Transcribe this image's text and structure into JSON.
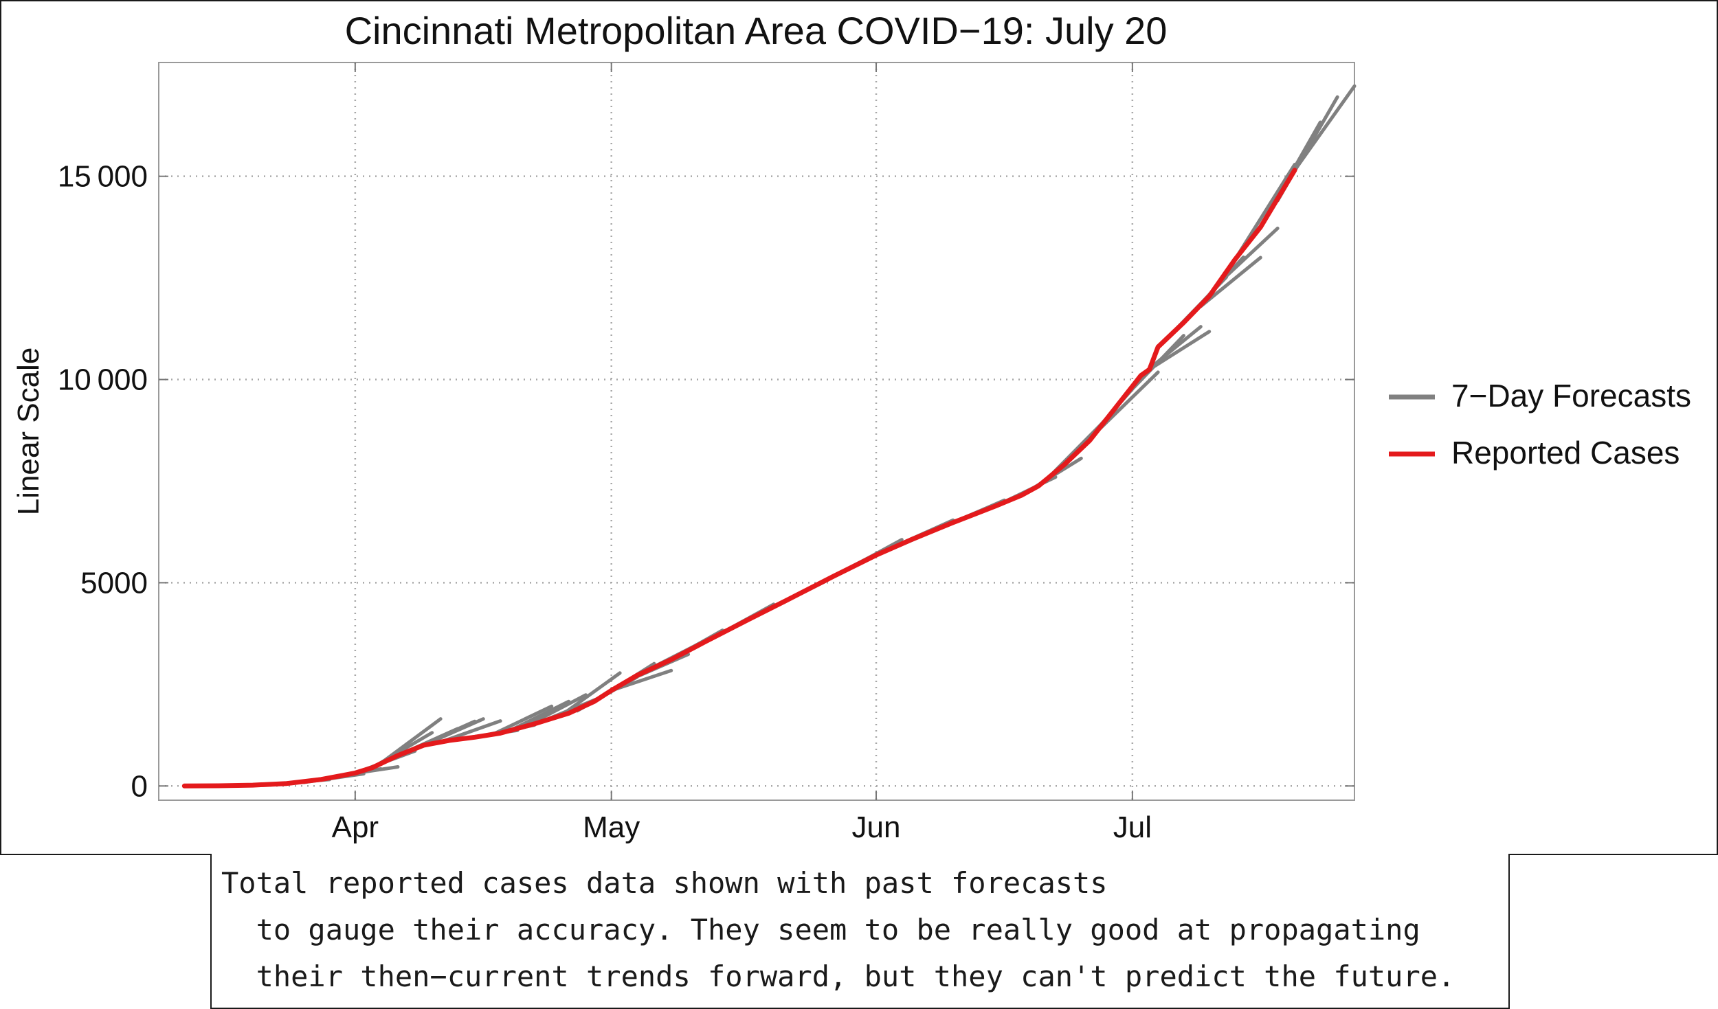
{
  "chart_data": {
    "type": "line",
    "title": "Cincinnati Metropolitan Area COVID−19: July 20",
    "xlabel": "",
    "ylabel": "Linear Scale",
    "grid": true,
    "x_domain": [
      "2020-03-09",
      "2020-07-27"
    ],
    "y_domain": [
      -350,
      17800
    ],
    "x_ticks": [
      {
        "date": "2020-04-01",
        "label": "Apr"
      },
      {
        "date": "2020-05-01",
        "label": "May"
      },
      {
        "date": "2020-06-01",
        "label": "Jun"
      },
      {
        "date": "2020-07-01",
        "label": "Jul"
      }
    ],
    "y_ticks": [
      {
        "value": 0,
        "label": "0"
      },
      {
        "value": 5000,
        "label": "5000"
      },
      {
        "value": 10000,
        "label": "10 000"
      },
      {
        "value": 15000,
        "label": "15 000"
      }
    ],
    "legend": {
      "placement": "right",
      "entries": [
        {
          "label": "7−Day Forecasts",
          "color": "#808080"
        },
        {
          "label": "Reported Cases",
          "color": "#e41a1c"
        }
      ]
    },
    "series": [
      {
        "name": "Reported Cases",
        "color": "#e41a1c",
        "points": [
          [
            "2020-03-12",
            0
          ],
          [
            "2020-03-16",
            5
          ],
          [
            "2020-03-20",
            20
          ],
          [
            "2020-03-24",
            60
          ],
          [
            "2020-03-28",
            160
          ],
          [
            "2020-04-01",
            320
          ],
          [
            "2020-04-03",
            450
          ],
          [
            "2020-04-06",
            750
          ],
          [
            "2020-04-09",
            1000
          ],
          [
            "2020-04-12",
            1120
          ],
          [
            "2020-04-15",
            1200
          ],
          [
            "2020-04-18",
            1300
          ],
          [
            "2020-04-22",
            1530
          ],
          [
            "2020-04-26",
            1790
          ],
          [
            "2020-04-29",
            2080
          ],
          [
            "2020-05-01",
            2350
          ],
          [
            "2020-05-04",
            2720
          ],
          [
            "2020-05-08",
            3110
          ],
          [
            "2020-05-12",
            3550
          ],
          [
            "2020-05-17",
            4090
          ],
          [
            "2020-05-22",
            4620
          ],
          [
            "2020-05-27",
            5160
          ],
          [
            "2020-06-01",
            5680
          ],
          [
            "2020-06-05",
            6050
          ],
          [
            "2020-06-10",
            6480
          ],
          [
            "2020-06-15",
            6890
          ],
          [
            "2020-06-18",
            7150
          ],
          [
            "2020-06-20",
            7380
          ],
          [
            "2020-06-23",
            7900
          ],
          [
            "2020-06-26",
            8500
          ],
          [
            "2020-06-29",
            9300
          ],
          [
            "2020-07-02",
            10100
          ],
          [
            "2020-07-03",
            10250
          ],
          [
            "2020-07-04",
            10800
          ],
          [
            "2020-07-07",
            11400
          ],
          [
            "2020-07-10",
            12050
          ],
          [
            "2020-07-13",
            12950
          ],
          [
            "2020-07-16",
            13750
          ],
          [
            "2020-07-20",
            15150
          ]
        ]
      },
      {
        "name": "7−Day Forecasts",
        "color": "#808080",
        "segments": [
          [
            [
              "2020-03-22",
              40
            ],
            [
              "2020-03-29",
              160
            ]
          ],
          [
            [
              "2020-03-24",
              60
            ],
            [
              "2020-03-31",
              260
            ]
          ],
          [
            [
              "2020-03-26",
              90
            ],
            [
              "2020-04-02",
              300
            ]
          ],
          [
            [
              "2020-03-28",
              160
            ],
            [
              "2020-04-04",
              420
            ]
          ],
          [
            [
              "2020-03-30",
              250
            ],
            [
              "2020-04-06",
              470
            ]
          ],
          [
            [
              "2020-04-01",
              320
            ],
            [
              "2020-04-08",
              860
            ]
          ],
          [
            [
              "2020-04-03",
              450
            ],
            [
              "2020-04-10",
              1310
            ]
          ],
          [
            [
              "2020-04-04",
              560
            ],
            [
              "2020-04-11",
              1650
            ]
          ],
          [
            [
              "2020-04-06",
              750
            ],
            [
              "2020-04-13",
              1410
            ]
          ],
          [
            [
              "2020-04-08",
              930
            ],
            [
              "2020-04-15",
              1590
            ]
          ],
          [
            [
              "2020-04-09",
              1000
            ],
            [
              "2020-04-16",
              1650
            ]
          ],
          [
            [
              "2020-04-11",
              1080
            ],
            [
              "2020-04-18",
              1600
            ]
          ],
          [
            [
              "2020-04-13",
              1150
            ],
            [
              "2020-04-20",
              1370
            ]
          ],
          [
            [
              "2020-04-15",
              1200
            ],
            [
              "2020-04-22",
              1500
            ]
          ],
          [
            [
              "2020-04-17",
              1260
            ],
            [
              "2020-04-24",
              1960
            ]
          ],
          [
            [
              "2020-04-19",
              1350
            ],
            [
              "2020-04-26",
              2080
            ]
          ],
          [
            [
              "2020-04-21",
              1470
            ],
            [
              "2020-04-28",
              2240
            ]
          ],
          [
            [
              "2020-04-23",
              1600
            ],
            [
              "2020-04-30",
              2200
            ]
          ],
          [
            [
              "2020-04-25",
              1720
            ],
            [
              "2020-05-02",
              2780
            ]
          ],
          [
            [
              "2020-04-27",
              1850
            ],
            [
              "2020-05-04",
              2680
            ]
          ],
          [
            [
              "2020-04-29",
              2080
            ],
            [
              "2020-05-06",
              3010
            ]
          ],
          [
            [
              "2020-05-01",
              2350
            ],
            [
              "2020-05-08",
              2840
            ]
          ],
          [
            [
              "2020-05-03",
              2600
            ],
            [
              "2020-05-10",
              3240
            ]
          ],
          [
            [
              "2020-05-05",
              2830
            ],
            [
              "2020-05-12",
              3580
            ]
          ],
          [
            [
              "2020-05-07",
              3000
            ],
            [
              "2020-05-14",
              3830
            ]
          ],
          [
            [
              "2020-05-10",
              3330
            ],
            [
              "2020-05-17",
              4090
            ]
          ],
          [
            [
              "2020-05-13",
              3660
            ],
            [
              "2020-05-20",
              4470
            ]
          ],
          [
            [
              "2020-05-16",
              3980
            ],
            [
              "2020-05-23",
              4730
            ]
          ],
          [
            [
              "2020-05-19",
              4300
            ],
            [
              "2020-05-26",
              5030
            ]
          ],
          [
            [
              "2020-05-22",
              4620
            ],
            [
              "2020-05-29",
              5380
            ]
          ],
          [
            [
              "2020-05-25",
              4950
            ],
            [
              "2020-06-01",
              5710
            ]
          ],
          [
            [
              "2020-05-28",
              5260
            ],
            [
              "2020-06-04",
              6060
            ]
          ],
          [
            [
              "2020-05-31",
              5580
            ],
            [
              "2020-06-07",
              6210
            ]
          ],
          [
            [
              "2020-06-03",
              5880
            ],
            [
              "2020-06-10",
              6540
            ]
          ],
          [
            [
              "2020-06-06",
              6140
            ],
            [
              "2020-06-13",
              6750
            ]
          ],
          [
            [
              "2020-06-09",
              6390
            ],
            [
              "2020-06-16",
              7030
            ]
          ],
          [
            [
              "2020-06-12",
              6650
            ],
            [
              "2020-06-19",
              7250
            ]
          ],
          [
            [
              "2020-06-15",
              6890
            ],
            [
              "2020-06-22",
              7600
            ]
          ],
          [
            [
              "2020-06-18",
              7150
            ],
            [
              "2020-06-25",
              8060
            ]
          ],
          [
            [
              "2020-06-21",
              7550
            ],
            [
              "2020-06-28",
              9040
            ]
          ],
          [
            [
              "2020-06-24",
              8100
            ],
            [
              "2020-07-01",
              9770
            ]
          ],
          [
            [
              "2020-06-27",
              8750
            ],
            [
              "2020-07-04",
              10180
            ]
          ],
          [
            [
              "2020-06-30",
              9550
            ],
            [
              "2020-07-07",
              11080
            ]
          ],
          [
            [
              "2020-07-02",
              10100
            ],
            [
              "2020-07-09",
              11300
            ]
          ],
          [
            [
              "2020-07-03",
              10250
            ],
            [
              "2020-07-10",
              11180
            ]
          ],
          [
            [
              "2020-07-05",
              11000
            ],
            [
              "2020-07-12",
              12520
            ]
          ],
          [
            [
              "2020-07-07",
              11400
            ],
            [
              "2020-07-14",
              13010
            ]
          ],
          [
            [
              "2020-07-09",
              11800
            ],
            [
              "2020-07-16",
              13000
            ]
          ],
          [
            [
              "2020-07-11",
              12350
            ],
            [
              "2020-07-18",
              13720
            ]
          ],
          [
            [
              "2020-07-13",
              12950
            ],
            [
              "2020-07-20",
              15290
            ]
          ],
          [
            [
              "2020-07-16",
              13750
            ],
            [
              "2020-07-23",
              16330
            ]
          ],
          [
            [
              "2020-07-18",
              14400
            ],
            [
              "2020-07-25",
              16950
            ]
          ],
          [
            [
              "2020-07-20",
              15150
            ],
            [
              "2020-07-27",
              17220
            ]
          ]
        ]
      }
    ]
  },
  "caption": {
    "lines": [
      "Total reported cases data shown with past forecasts",
      "  to gauge their accuracy. They seem to be really good at propagating",
      "  their then−current trends forward, but they can't predict the future."
    ]
  }
}
